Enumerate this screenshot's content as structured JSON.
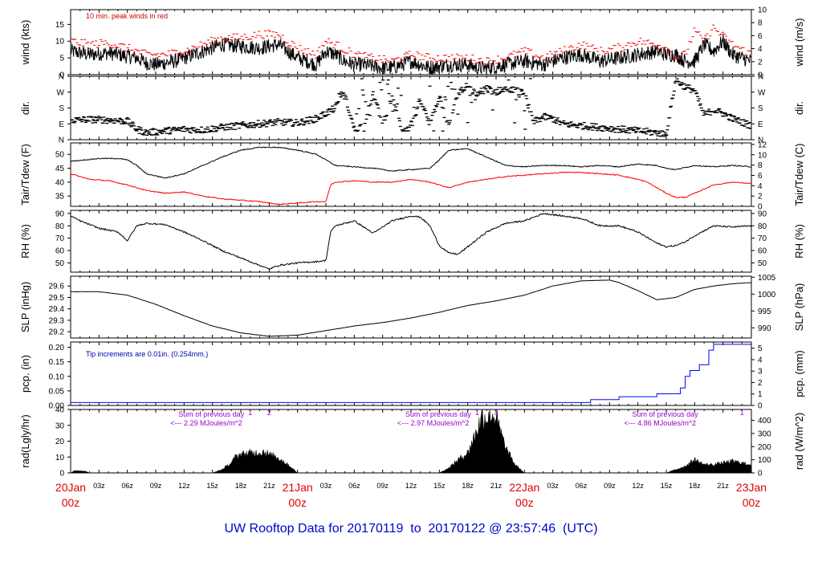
{
  "footer": {
    "title": "UW Rooftop Data for 20170119  to  20170122 @ 23:57:46  (UTC)"
  },
  "colors": {
    "primary": "#000000",
    "peak": "#ff0000",
    "dew": "#ff0000",
    "precip": "#0000ff",
    "note_red": "#cc0000",
    "note_blue": "#0000aa",
    "note_purple": "#9900cc",
    "date": "#e00000"
  },
  "time_axis": {
    "hours_total": 72,
    "minor_ticks": [
      "03z",
      "06z",
      "09z",
      "12z",
      "15z",
      "18z",
      "21z",
      "03z",
      "06z",
      "09z",
      "12z",
      "15z",
      "18z",
      "21z",
      "03z",
      "06z",
      "09z",
      "12z",
      "15z",
      "18z",
      "21z"
    ],
    "minor_hours": [
      3,
      6,
      9,
      12,
      15,
      18,
      21,
      27,
      30,
      33,
      36,
      39,
      42,
      45,
      51,
      54,
      57,
      60,
      63,
      66,
      69
    ],
    "day_labels": [
      {
        "hour": 0,
        "date": "20Jan",
        "zulu": "00z"
      },
      {
        "hour": 24,
        "date": "21Jan",
        "zulu": "00z"
      },
      {
        "hour": 48,
        "date": "22Jan",
        "zulu": "00z"
      },
      {
        "hour": 72,
        "date": "23Jan",
        "zulu": "00z"
      }
    ]
  },
  "chart_data": [
    {
      "type": "line",
      "id": "wind",
      "ylabel": "wind (kts)",
      "ylabel_right": "wind (m/s)",
      "yticks": [
        "0",
        "5",
        "10",
        "15"
      ],
      "yticks_right": [
        "0",
        "2",
        "4",
        "6",
        "8",
        "10"
      ],
      "ylim": [
        0,
        19.4
      ],
      "ylim_right": [
        0,
        10
      ],
      "annotation": "10 min. peak winds in red",
      "series": [
        {
          "values_hour": [
            0,
            2,
            4,
            6,
            7,
            8,
            9,
            10,
            11,
            12,
            13,
            14,
            15,
            16,
            18,
            20,
            22,
            24,
            25,
            26,
            27,
            28,
            29,
            30,
            31,
            32,
            33,
            34,
            35,
            36,
            38,
            40,
            42,
            43,
            44,
            46,
            48,
            50,
            52,
            54,
            56,
            58,
            60,
            62,
            63,
            64,
            65,
            66,
            67,
            68,
            69,
            70,
            71,
            72
          ],
          "values": [
            7,
            6,
            6.5,
            5.5,
            5,
            3.5,
            3,
            3.5,
            4,
            5,
            6,
            7,
            8,
            9,
            8.5,
            8,
            9,
            5,
            4,
            3,
            7,
            6,
            4,
            3,
            3,
            2.5,
            2,
            2,
            3,
            4,
            2,
            3,
            3,
            2,
            2,
            3,
            4,
            3,
            5,
            6,
            4,
            5,
            6,
            7,
            6,
            6,
            4,
            4,
            9,
            7,
            10,
            6,
            5,
            4
          ]
        },
        {
          "values_hour": [
            0,
            2,
            4,
            6,
            8,
            10,
            12,
            14,
            16,
            18,
            20,
            22,
            24,
            26,
            27,
            28,
            30,
            32,
            34,
            36,
            38,
            40,
            42,
            44,
            46,
            48,
            50,
            52,
            54,
            56,
            58,
            60,
            62,
            63,
            64,
            65,
            66,
            67,
            68,
            70,
            72
          ],
          "values": [
            10,
            9,
            9.5,
            8,
            6,
            6,
            7,
            9,
            11,
            11,
            12,
            12,
            8,
            6,
            10,
            9,
            6,
            5,
            4,
            6,
            5,
            5,
            5,
            4,
            5,
            7,
            5,
            7,
            9,
            7,
            8,
            10,
            9,
            8,
            5,
            6,
            13,
            10,
            14,
            9,
            6
          ]
        }
      ]
    },
    {
      "type": "scatter",
      "id": "dir",
      "ylabel": "dir.",
      "ylabel_right": "dir.",
      "yticks": [
        "N",
        "E",
        "S",
        "W",
        "N"
      ],
      "yticks_right": [
        "N",
        "E",
        "S",
        "W",
        "N"
      ],
      "ylim": [
        0,
        360
      ],
      "points_hour": [
        0,
        2,
        4,
        6,
        7,
        8,
        10,
        12,
        14,
        16,
        18,
        20,
        22,
        24,
        26,
        28,
        28.5,
        29,
        30,
        31,
        32,
        33,
        34,
        35,
        36,
        37,
        38,
        39,
        40,
        41,
        42,
        43,
        44,
        45,
        46,
        47,
        48,
        49,
        50,
        51,
        52,
        54,
        56,
        58,
        60,
        62,
        63,
        64,
        65,
        66,
        67,
        68,
        69,
        70,
        71,
        72
      ],
      "points_deg": [
        110,
        115,
        112,
        105,
        60,
        40,
        50,
        60,
        55,
        70,
        80,
        90,
        100,
        95,
        120,
        180,
        260,
        250,
        60,
        80,
        260,
        90,
        240,
        60,
        70,
        230,
        80,
        250,
        75,
        270,
        290,
        260,
        290,
        270,
        300,
        280,
        260,
        100,
        130,
        120,
        90,
        80,
        70,
        60,
        50,
        40,
        30,
        340,
        300,
        280,
        140,
        170,
        150,
        120,
        100,
        80
      ]
    },
    {
      "type": "line",
      "id": "temp",
      "ylabel": "Tair/Tdew (F)",
      "ylabel_right": "Tair/Tdew (C)",
      "yticks": [
        "35",
        "40",
        "45",
        "50"
      ],
      "yticks_right": [
        "0",
        "2",
        "4",
        "6",
        "8",
        "10",
        "12"
      ],
      "ylim": [
        31.3,
        54.1
      ],
      "ylim_right": [
        0,
        12.3
      ],
      "series": [
        {
          "name": "Tair",
          "values_hour": [
            0,
            3,
            5,
            6,
            7,
            8,
            10,
            12,
            14,
            16,
            18,
            20,
            22,
            24,
            26,
            27,
            28,
            30,
            32,
            34,
            36,
            38,
            39,
            40,
            42,
            44,
            46,
            48,
            50,
            52,
            54,
            56,
            58,
            60,
            62,
            63,
            64,
            66,
            68,
            70,
            72
          ],
          "values": [
            47.5,
            48.5,
            48.5,
            48,
            46,
            43,
            41.5,
            43,
            46,
            49,
            51.5,
            52.5,
            52.5,
            51.5,
            50,
            48,
            46,
            45.5,
            45,
            44,
            44.5,
            45,
            48,
            51.5,
            52,
            49,
            46,
            45.5,
            46,
            46,
            45.5,
            46,
            45.5,
            46.5,
            46,
            45,
            44.5,
            46,
            45.5,
            46,
            45.5
          ]
        },
        {
          "name": "Tdew",
          "values_hour": [
            0,
            2,
            4,
            6,
            8,
            10,
            12,
            14,
            16,
            18,
            20,
            22,
            24,
            26,
            27,
            27.5,
            28,
            30,
            32,
            34,
            36,
            38,
            40,
            42,
            44,
            46,
            48,
            50,
            52,
            54,
            56,
            58,
            60,
            61,
            62,
            63,
            64,
            65,
            66,
            68,
            70,
            72
          ],
          "values": [
            43,
            41,
            40.5,
            39,
            37,
            36,
            36.5,
            35,
            34,
            33.5,
            33,
            32,
            32.5,
            33,
            33,
            39,
            40,
            40.5,
            40,
            40,
            41,
            40,
            38,
            40,
            41,
            42,
            42.5,
            43,
            43.5,
            43.5,
            43,
            42.5,
            41,
            40,
            38,
            36,
            34.5,
            34.5,
            36,
            39,
            40,
            39.5
          ]
        }
      ]
    },
    {
      "type": "line",
      "id": "rh",
      "ylabel": "RH (%)",
      "ylabel_right": "RH (%)",
      "yticks": [
        "50",
        "60",
        "70",
        "80",
        "90"
      ],
      "yticks_right": [
        "50",
        "60",
        "70",
        "80",
        "90"
      ],
      "ylim": [
        42.5,
        92.5
      ],
      "series": [
        {
          "values_hour": [
            0,
            1,
            3,
            5,
            6,
            7,
            8,
            10,
            12,
            14,
            16,
            18,
            20,
            21,
            22,
            24,
            26,
            27,
            27.5,
            28,
            30,
            32,
            34,
            36,
            37,
            38,
            39,
            40,
            41,
            42,
            44,
            46,
            48,
            50,
            52,
            54,
            56,
            58,
            60,
            62,
            63,
            64,
            65,
            66,
            67,
            68,
            70,
            72
          ],
          "values": [
            88,
            84,
            78,
            75,
            68,
            80,
            82,
            81,
            75,
            68,
            60,
            54,
            48,
            45,
            48,
            50,
            51,
            52,
            75,
            80,
            84,
            74,
            84,
            88,
            87,
            80,
            64,
            58,
            57,
            63,
            75,
            82,
            84,
            90,
            88,
            86,
            80,
            80,
            75,
            66,
            63,
            64,
            67,
            72,
            76,
            80,
            79,
            80
          ]
        }
      ]
    },
    {
      "type": "line",
      "id": "slp",
      "ylabel": "SLP (inHg)",
      "ylabel_right": "SLP (hPa)",
      "yticks": [
        "29.2",
        "29.3",
        "29.4",
        "29.5",
        "29.6"
      ],
      "yticks_right": [
        "990",
        "995",
        "1000",
        "1005"
      ],
      "ylim": [
        29.145,
        29.686
      ],
      "ylim_right": [
        987,
        1005.3
      ],
      "series": [
        {
          "values_hour": [
            0,
            3,
            6,
            9,
            12,
            15,
            18,
            21,
            24,
            27,
            30,
            33,
            36,
            39,
            42,
            45,
            48,
            51,
            54,
            57,
            58,
            60,
            62,
            64,
            66,
            68,
            70,
            72
          ],
          "values": [
            29.55,
            29.55,
            29.52,
            29.44,
            29.34,
            29.25,
            29.19,
            29.16,
            29.17,
            29.21,
            29.25,
            29.28,
            29.32,
            29.37,
            29.43,
            29.47,
            29.52,
            29.6,
            29.645,
            29.652,
            29.63,
            29.56,
            29.48,
            29.5,
            29.57,
            29.6,
            29.62,
            29.63
          ]
        }
      ]
    },
    {
      "type": "line",
      "id": "pcp",
      "ylabel": "pcp. (in)",
      "ylabel_right": "pcp. (mm)",
      "yticks": [
        "0.00",
        "0.05",
        "0.10",
        "0.15",
        "0.20"
      ],
      "yticks_right": [
        "0",
        "1",
        "2",
        "3",
        "4",
        "5"
      ],
      "ylim": [
        0,
        0.218
      ],
      "ylim_right": [
        0,
        5.54
      ],
      "annotation": "Tip increments are 0.01in. (0.254mm.)",
      "series": [
        {
          "step": true,
          "values_hour": [
            0,
            53,
            55,
            58,
            62,
            64.5,
            65,
            65.5,
            66.5,
            67.5,
            68,
            72
          ],
          "values": [
            0.01,
            0.01,
            0.02,
            0.03,
            0.04,
            0.06,
            0.1,
            0.12,
            0.14,
            0.19,
            0.21,
            0.21
          ]
        }
      ]
    },
    {
      "type": "area",
      "id": "rad",
      "ylabel": "rad(Lgly/hr)",
      "ylabel_right": "rad (W/m^2)",
      "yticks": [
        "0",
        "10",
        "20",
        "30",
        "40"
      ],
      "yticks_right": [
        "0",
        "100",
        "200",
        "300",
        "400"
      ],
      "ylim": [
        0,
        40
      ],
      "ylim_right": [
        0,
        483
      ],
      "annotations": [
        {
          "hour": 8,
          "line1": "Sum of previous day",
          "line2": "<--- 2.29 MJoules/m^2"
        },
        {
          "hour": 32,
          "line1": "Sum of previous day",
          "line2": "<--- 2.97 MJoules/m^2"
        },
        {
          "hour": 56,
          "line1": "Sum of previous day",
          "line2": "<--- 4.86 MJoules/m^2"
        }
      ],
      "markers": [
        {
          "hour": 19,
          "text": "1"
        },
        {
          "hour": 21,
          "text": "2"
        },
        {
          "hour": 43,
          "text": "1"
        },
        {
          "hour": 45,
          "text": "3"
        },
        {
          "hour": 71,
          "text": "1"
        }
      ],
      "series": [
        {
          "values_hour": [
            0,
            0.5,
            1.5,
            2,
            15,
            16,
            17,
            17.5,
            18,
            19,
            20,
            20.5,
            21,
            22,
            23,
            24,
            39,
            40,
            41,
            42,
            43,
            43.5,
            44,
            44.5,
            45,
            46,
            47,
            48,
            63,
            64,
            65,
            66,
            67,
            68,
            69,
            70,
            71,
            72
          ],
          "values": [
            0,
            1.5,
            1,
            0,
            0,
            2,
            6,
            10,
            11,
            12,
            12,
            13,
            11,
            9,
            5,
            0,
            0,
            3,
            8,
            12,
            26,
            34,
            33,
            35,
            33,
            15,
            5,
            0,
            0,
            2,
            4,
            8,
            5,
            5,
            6,
            7,
            6,
            5
          ]
        }
      ]
    }
  ]
}
